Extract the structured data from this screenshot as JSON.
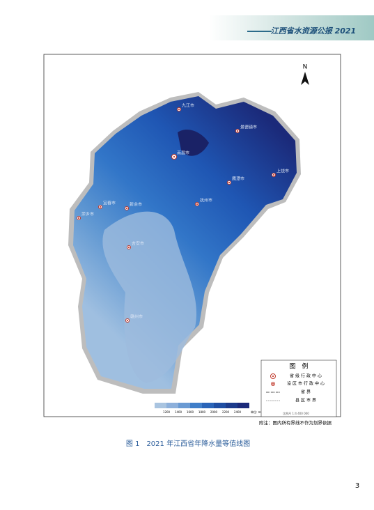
{
  "header": {
    "title": "江西省水资源公报 2021"
  },
  "map": {
    "north": "N",
    "cities": [
      {
        "name": "九江市",
        "capital": false
      },
      {
        "name": "景德镇市",
        "capital": false
      },
      {
        "name": "南昌市",
        "capital": true
      },
      {
        "name": "上饶市",
        "capital": false
      },
      {
        "name": "鹰潭市",
        "capital": false
      },
      {
        "name": "抚州市",
        "capital": false
      },
      {
        "name": "宜春市",
        "capital": false
      },
      {
        "name": "新余市",
        "capital": false
      },
      {
        "name": "萍乡市",
        "capital": false
      },
      {
        "name": "吉安市",
        "capital": false
      },
      {
        "name": "赣州市",
        "capital": false
      }
    ],
    "scale_bar": {
      "ticks": [
        "1200",
        "1400",
        "1600",
        "1800",
        "2000",
        "2200",
        "2400"
      ],
      "unit": "单位: mm"
    },
    "legend": {
      "title": "图　例",
      "items": [
        "省级行政中心",
        "设区市行政中心",
        "省界",
        "县区市界"
      ],
      "ratio": "比例尺 1:4 400 000"
    },
    "note": "附注：图内所有界线不作为划界依据"
  },
  "caption": "图 1　2021 年江西省年降水量等值线图",
  "page_number": "3"
}
